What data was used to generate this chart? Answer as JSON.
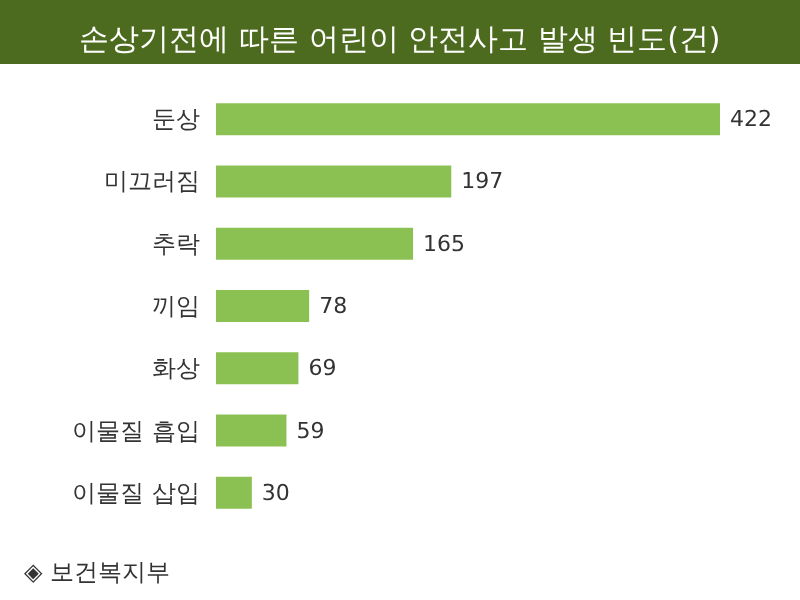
{
  "chart_data": {
    "type": "bar",
    "orientation": "horizontal",
    "title": "손상기전에 따른 어린이 안전사고 발생 빈도(건)",
    "categories": [
      "둔상",
      "미끄러짐",
      "추락",
      "끼임",
      "화상",
      "이물질 흡입",
      "이물질 삽입"
    ],
    "values": [
      422,
      197,
      165,
      78,
      69,
      59,
      30
    ],
    "color": "#8bc152",
    "data_labels": true,
    "annotations": [
      "◈ 보건복지부"
    ]
  }
}
